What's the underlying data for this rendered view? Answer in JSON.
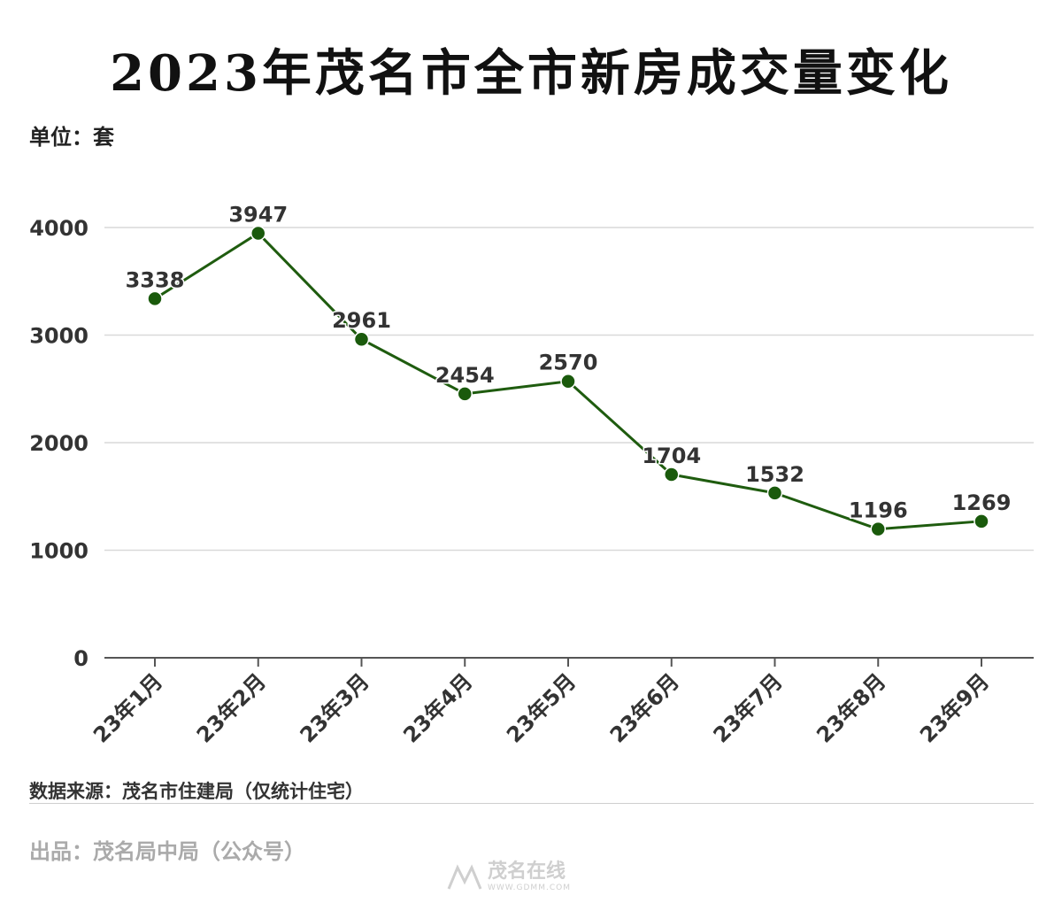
{
  "title": "2023年茂名市全市新房成交量变化",
  "unit_label": "单位：套",
  "source_label": "数据来源：茂名市住建局（仅统计住宅）",
  "publisher_label": "出品：茂名局中局（公众号）",
  "watermark": {
    "text": "茂名在线",
    "url": "WWW.GDMM.COM",
    "icon": "logo-mark-icon"
  },
  "colors": {
    "line": "#1f5c0f",
    "marker": "#1a5a0c",
    "grid": "#d9d9d9",
    "axis": "#555555",
    "text": "#333333"
  },
  "chart_data": {
    "type": "line",
    "categories": [
      "23年1月",
      "23年2月",
      "23年3月",
      "23年4月",
      "23年5月",
      "23年6月",
      "23年7月",
      "23年8月",
      "23年9月"
    ],
    "series": [
      {
        "values": [
          3338,
          3947,
          2961,
          2454,
          2570,
          1704,
          1532,
          1196,
          1269
        ]
      }
    ],
    "yticks": [
      0,
      1000,
      2000,
      3000,
      4000
    ],
    "ylim": [
      0,
      4000
    ],
    "grid": true,
    "data_labels": true
  }
}
